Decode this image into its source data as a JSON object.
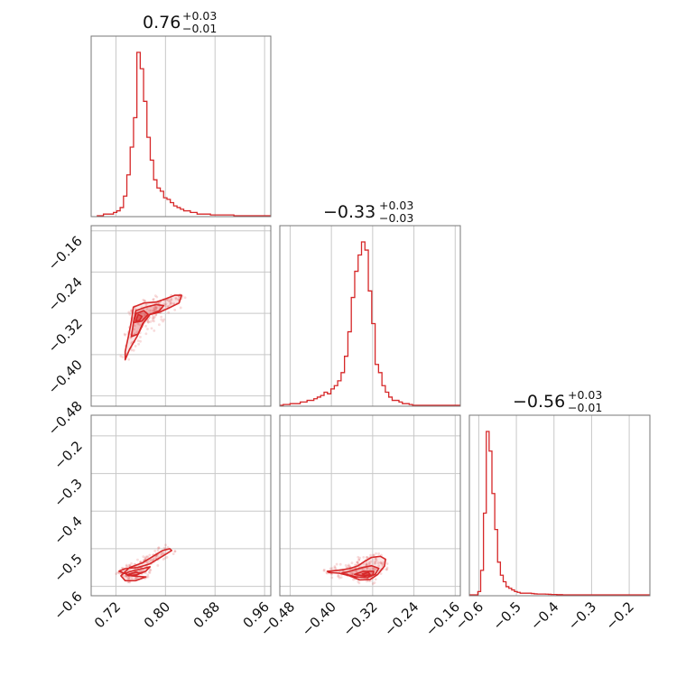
{
  "chart_data": {
    "type": "corner",
    "parameters": 3,
    "color": "#d62728",
    "grid": true,
    "titles": [
      {
        "main": "0.76",
        "sup": "+0.03",
        "sub": "−0.01"
      },
      {
        "main": "−0.33",
        "sup": "+0.03",
        "sub": "−0.03"
      },
      {
        "main": "−0.56",
        "sup": "+0.03",
        "sub": "−0.01"
      }
    ],
    "axes": [
      {
        "range": [
          0.68,
          0.97
        ],
        "ticks": [
          0.72,
          0.8,
          0.88,
          0.96
        ],
        "tick_labels": [
          "0.72",
          "0.80",
          "0.88",
          "0.96"
        ]
      },
      {
        "range": [
          -0.5,
          -0.15
        ],
        "ticks": [
          -0.48,
          -0.4,
          -0.32,
          -0.24,
          -0.16
        ],
        "tick_labels": [
          "−0.48",
          "−0.40",
          "−0.32",
          "−0.24",
          "−0.16"
        ]
      },
      {
        "range": [
          -0.625,
          -0.145
        ],
        "ticks": [
          -0.6,
          -0.5,
          -0.4,
          -0.3,
          -0.2
        ],
        "tick_labels": [
          "−0.6",
          "−0.5",
          "−0.4",
          "−0.3",
          "−0.2"
        ]
      }
    ],
    "histograms": [
      {
        "param": 0,
        "x0": 0.689,
        "bin": 0.0054,
        "counts": [
          0,
          0,
          0.01,
          0.01,
          0.01,
          0.02,
          0.03,
          0.05,
          0.12,
          0.25,
          0.42,
          0.6,
          1.0,
          0.9,
          0.7,
          0.48,
          0.34,
          0.22,
          0.17,
          0.15,
          0.11,
          0.1,
          0.08,
          0.06,
          0.05,
          0.04,
          0.03,
          0.03,
          0.02,
          0.02,
          0.01,
          0.01,
          0.01,
          0.01,
          0.005,
          0.005,
          0.005,
          0.005,
          0.005,
          0.005,
          0.005,
          0,
          0,
          0,
          0,
          0,
          0,
          0,
          0,
          0,
          0,
          0,
          0
        ]
      },
      {
        "param": 1,
        "x0": -0.5,
        "bin": 0.0066,
        "counts": [
          0,
          0.005,
          0.005,
          0.01,
          0.01,
          0.01,
          0.02,
          0.02,
          0.03,
          0.03,
          0.04,
          0.05,
          0.06,
          0.08,
          0.07,
          0.1,
          0.12,
          0.15,
          0.2,
          0.3,
          0.45,
          0.66,
          0.82,
          0.92,
          1.0,
          0.95,
          0.7,
          0.5,
          0.25,
          0.2,
          0.12,
          0.08,
          0.05,
          0.03,
          0.03,
          0.02,
          0.01,
          0.01,
          0.005,
          0,
          0,
          0,
          0,
          0,
          0,
          0,
          0,
          0,
          0,
          0,
          0,
          0,
          0
        ]
      },
      {
        "param": 2,
        "x0": -0.625,
        "bin": 0.0075,
        "counts": [
          0,
          0,
          0,
          0.02,
          0.15,
          0.5,
          1.0,
          0.88,
          0.62,
          0.4,
          0.2,
          0.12,
          0.08,
          0.05,
          0.04,
          0.03,
          0.02,
          0.015,
          0.01,
          0.01,
          0.01,
          0.01,
          0.008,
          0.006,
          0.005,
          0.005,
          0.005,
          0.004,
          0.003,
          0.002,
          0.002,
          0.001,
          0.001,
          0,
          0,
          0,
          0,
          0,
          0,
          0,
          0,
          0,
          0,
          0,
          0,
          0,
          0,
          0,
          0,
          0,
          0,
          0,
          0,
          0,
          0,
          0,
          0,
          0,
          0,
          0,
          0,
          0,
          0,
          0,
          0
        ]
      }
    ],
    "pair_plots": [
      {
        "x_param": 0,
        "y_param": 1,
        "contours": [
          [
            [
              0.735,
              -0.394
            ],
            [
              0.74,
              -0.365
            ],
            [
              0.745,
              -0.335
            ],
            [
              0.748,
              -0.308
            ],
            [
              0.765,
              -0.3
            ],
            [
              0.785,
              -0.298
            ],
            [
              0.8,
              -0.292
            ],
            [
              0.815,
              -0.285
            ],
            [
              0.826,
              -0.285
            ],
            [
              0.822,
              -0.3
            ],
            [
              0.805,
              -0.31
            ],
            [
              0.79,
              -0.318
            ],
            [
              0.775,
              -0.322
            ],
            [
              0.763,
              -0.34
            ],
            [
              0.754,
              -0.365
            ],
            [
              0.742,
              -0.39
            ],
            [
              0.735,
              -0.41
            ]
          ],
          [
            [
              0.745,
              -0.365
            ],
            [
              0.748,
              -0.34
            ],
            [
              0.752,
              -0.315
            ],
            [
              0.768,
              -0.308
            ],
            [
              0.785,
              -0.303
            ],
            [
              0.797,
              -0.305
            ],
            [
              0.79,
              -0.315
            ],
            [
              0.775,
              -0.322
            ],
            [
              0.765,
              -0.338
            ],
            [
              0.756,
              -0.36
            ]
          ],
          [
            [
              0.748,
              -0.338
            ],
            [
              0.753,
              -0.32
            ],
            [
              0.765,
              -0.315
            ],
            [
              0.772,
              -0.322
            ],
            [
              0.762,
              -0.335
            ]
          ],
          [
            [
              0.752,
              -0.335
            ],
            [
              0.756,
              -0.322
            ],
            [
              0.762,
              -0.326
            ],
            [
              0.758,
              -0.334
            ]
          ]
        ]
      },
      {
        "x_param": 0,
        "y_param": 2,
        "contours": [
          [
            [
              0.725,
              -0.56
            ],
            [
              0.735,
              -0.553
            ],
            [
              0.755,
              -0.55
            ],
            [
              0.775,
              -0.54
            ],
            [
              0.795,
              -0.52
            ],
            [
              0.81,
              -0.505
            ],
            [
              0.807,
              -0.5
            ],
            [
              0.795,
              -0.505
            ],
            [
              0.78,
              -0.52
            ],
            [
              0.762,
              -0.538
            ],
            [
              0.742,
              -0.55
            ],
            [
              0.728,
              -0.572
            ],
            [
              0.735,
              -0.585
            ],
            [
              0.752,
              -0.585
            ],
            [
              0.768,
              -0.575
            ],
            [
              0.745,
              -0.572
            ]
          ],
          [
            [
              0.735,
              -0.565
            ],
            [
              0.748,
              -0.558
            ],
            [
              0.765,
              -0.552
            ],
            [
              0.775,
              -0.548
            ],
            [
              0.768,
              -0.56
            ],
            [
              0.752,
              -0.57
            ],
            [
              0.74,
              -0.572
            ]
          ],
          [
            [
              0.74,
              -0.568
            ],
            [
              0.752,
              -0.562
            ],
            [
              0.76,
              -0.565
            ],
            [
              0.75,
              -0.572
            ]
          ]
        ]
      },
      {
        "x_param": 1,
        "y_param": 2,
        "contours": [
          [
            [
              -0.408,
              -0.56
            ],
            [
              -0.385,
              -0.557
            ],
            [
              -0.365,
              -0.553
            ],
            [
              -0.348,
              -0.545
            ],
            [
              -0.335,
              -0.533
            ],
            [
              -0.322,
              -0.523
            ],
            [
              -0.305,
              -0.52
            ],
            [
              -0.295,
              -0.528
            ],
            [
              -0.297,
              -0.546
            ],
            [
              -0.31,
              -0.568
            ],
            [
              -0.325,
              -0.582
            ],
            [
              -0.345,
              -0.583
            ],
            [
              -0.365,
              -0.572
            ],
            [
              -0.385,
              -0.565
            ],
            [
              -0.405,
              -0.563
            ]
          ],
          [
            [
              -0.38,
              -0.565
            ],
            [
              -0.36,
              -0.558
            ],
            [
              -0.34,
              -0.55
            ],
            [
              -0.322,
              -0.545
            ],
            [
              -0.308,
              -0.552
            ],
            [
              -0.315,
              -0.568
            ],
            [
              -0.33,
              -0.577
            ],
            [
              -0.352,
              -0.575
            ]
          ],
          [
            [
              -0.355,
              -0.568
            ],
            [
              -0.338,
              -0.56
            ],
            [
              -0.318,
              -0.56
            ],
            [
              -0.32,
              -0.57
            ],
            [
              -0.335,
              -0.573
            ]
          ],
          [
            [
              -0.34,
              -0.567
            ],
            [
              -0.328,
              -0.563
            ],
            [
              -0.325,
              -0.569
            ],
            [
              -0.335,
              -0.571
            ]
          ]
        ]
      }
    ]
  }
}
